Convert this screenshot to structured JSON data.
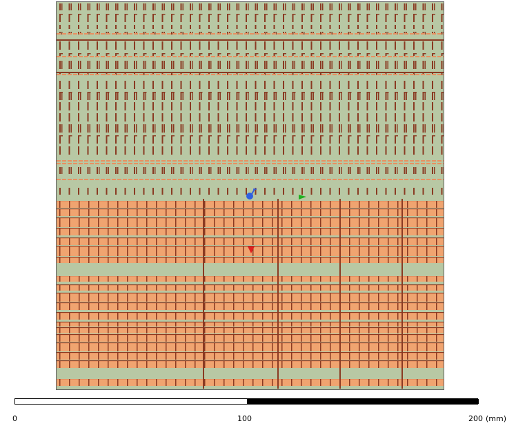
{
  "viewport": {
    "background": "#b8c8a4",
    "band_colors": {
      "copper": "#f0a470",
      "copper_dark": "#e89060",
      "trace": "#8a3a22",
      "substrate": "#b8c8a4"
    }
  },
  "markers": {
    "probe_icon": "probe-icon",
    "flag_icon": "flag-icon",
    "arrow_icon": "arrow-down-icon",
    "colors": {
      "probe": "#3060e0",
      "flag": "#20b020",
      "arrow": "#e02020"
    }
  },
  "scale": {
    "labels": [
      "0",
      "100",
      "200"
    ],
    "unit": "(mm)",
    "colors": {
      "fill": "#000000",
      "empty": "#ffffff"
    }
  }
}
